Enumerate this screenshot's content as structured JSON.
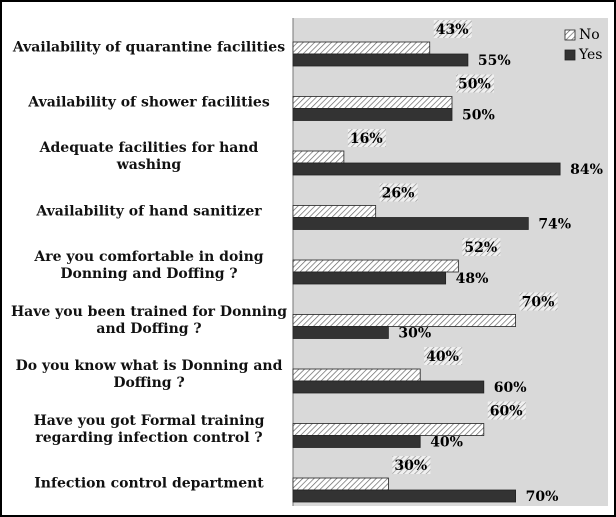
{
  "chart_data": {
    "type": "hbar",
    "categories": [
      "Availability of quarantine facilities",
      "Availability of shower facilities",
      "Adequate facilities for hand washing",
      "Availability of hand sanitizer",
      "Are you comfortable in doing Donning and Doffing ?",
      "Have you been trained for Donning and Doffing ?",
      "Do you know what is Donning and Doffing ?",
      "Have you got Formal training regarding infection control ?",
      "Infection control department"
    ],
    "series": [
      {
        "name": "No",
        "color": "#ffffff",
        "hatch": true,
        "values": [
          43,
          50,
          16,
          26,
          52,
          70,
          40,
          60,
          30
        ],
        "value_labels": [
          "43%",
          "50%",
          "16%",
          "26%",
          "52%",
          "70%",
          "40%",
          "60%",
          "30%"
        ]
      },
      {
        "name": "Yes",
        "color": "#333333",
        "hatch": false,
        "values": [
          55,
          50,
          84,
          74,
          48,
          30,
          60,
          40,
          70
        ],
        "value_labels": [
          "55%",
          "50%",
          "84%",
          "74%",
          "48%",
          "30%",
          "60%",
          "40%",
          "70%"
        ]
      }
    ],
    "xlim": [
      0,
      100
    ],
    "legend": "upper right"
  }
}
